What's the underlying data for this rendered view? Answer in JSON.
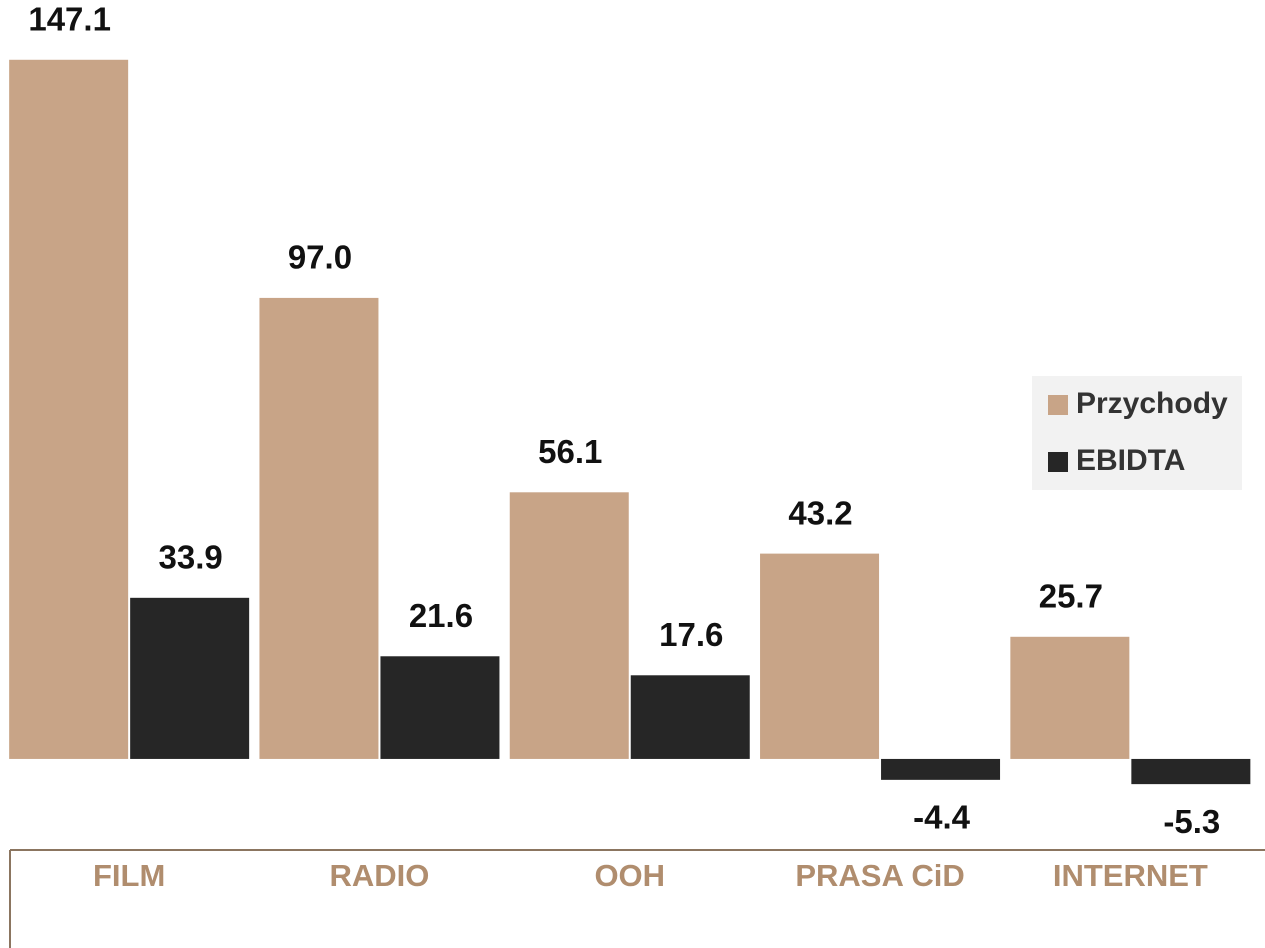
{
  "chart_data": {
    "type": "bar",
    "categories": [
      "FILM",
      "RADIO",
      "OOH",
      "PRASA CiD",
      "INTERNET"
    ],
    "series": [
      {
        "name": "Przychody",
        "color": "#c8a487",
        "values": [
          147.1,
          97.0,
          56.1,
          43.2,
          25.7
        ],
        "value_labels": [
          "147.1",
          "97.0",
          "56.1",
          "43.2",
          "25.7"
        ]
      },
      {
        "name": "EBIDTA",
        "color": "#262626",
        "values": [
          33.9,
          21.6,
          17.6,
          -4.4,
          -5.3
        ],
        "value_labels": [
          "33.9",
          "21.6",
          "17.6",
          "-4.4",
          "-5.3"
        ]
      }
    ],
    "ylim": [
      -20,
      150
    ],
    "legend": "right"
  }
}
